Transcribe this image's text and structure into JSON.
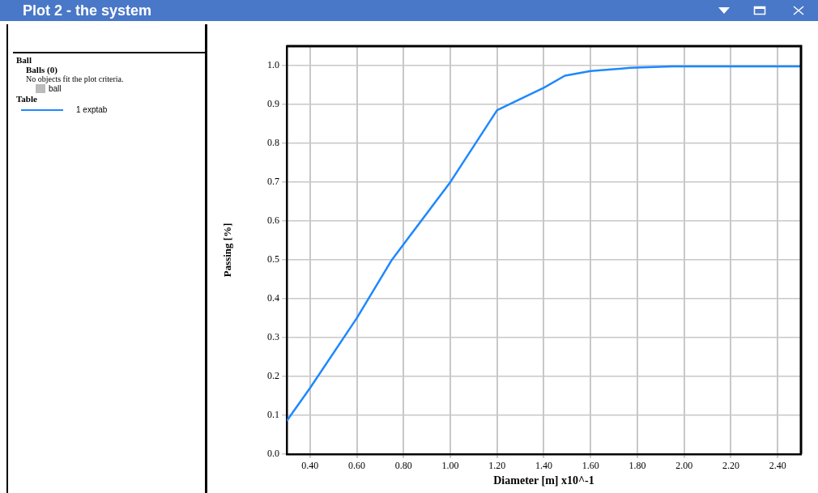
{
  "chart_data": {
    "type": "line",
    "title": "Plot 2 - the system",
    "xlabel": "Diameter [m] x10^-1",
    "ylabel": "Passing [%]",
    "annotations": [
      "Ball",
      "Balls (0)",
      "No objects fit the plot criteria.",
      "ball",
      "Table"
    ],
    "series": [
      {
        "name": "1 exptab",
        "color": "#1e88ff",
        "x": [
          0.3,
          0.4,
          0.6,
          0.75,
          0.8,
          1.0,
          1.2,
          1.4,
          1.49,
          1.6,
          1.77,
          1.95,
          2.5
        ],
        "values": [
          0.085,
          0.17,
          0.35,
          0.5,
          0.54,
          0.7,
          0.885,
          0.943,
          0.974,
          0.986,
          0.994,
          0.998,
          0.998
        ]
      }
    ],
    "xlim": [
      0.3,
      2.5
    ],
    "xticks": [
      {
        "value": 0.4,
        "label": "0.40"
      },
      {
        "value": 0.6,
        "label": "0.60"
      },
      {
        "value": 0.8,
        "label": "0.80"
      },
      {
        "value": 1.0,
        "label": "1.00"
      },
      {
        "value": 1.2,
        "label": "1.20"
      },
      {
        "value": 1.4,
        "label": "1.40"
      },
      {
        "value": 1.6,
        "label": "1.60"
      },
      {
        "value": 1.8,
        "label": "1.80"
      },
      {
        "value": 2.0,
        "label": "2.00"
      },
      {
        "value": 2.2,
        "label": "2.20"
      },
      {
        "value": 2.4,
        "label": "2.40"
      }
    ],
    "ylim": [
      0,
      1.05
    ],
    "yticks": [
      {
        "value": 0,
        "label": "0.0"
      },
      {
        "value": 0.1,
        "label": "0.1"
      },
      {
        "value": 0.2,
        "label": "0.2"
      },
      {
        "value": 0.3,
        "label": "0.3"
      },
      {
        "value": 0.4,
        "label": "0.4"
      },
      {
        "value": 0.5,
        "label": "0.5"
      },
      {
        "value": 0.6,
        "label": "0.6"
      },
      {
        "value": 0.7,
        "label": "0.7"
      },
      {
        "value": 0.8,
        "label": "0.8"
      },
      {
        "value": 0.9,
        "label": "0.9"
      },
      {
        "value": 1.0,
        "label": "1.0"
      }
    ],
    "grid": true,
    "legend": "left",
    "marker": "none",
    "line_style": "solid"
  }
}
